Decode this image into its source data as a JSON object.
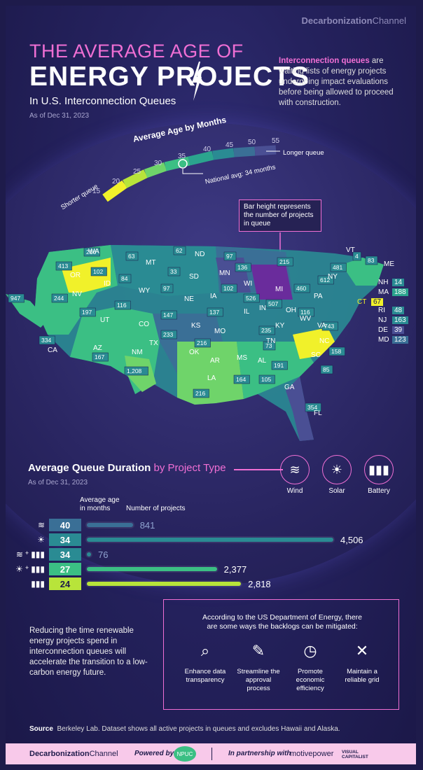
{
  "header": {
    "brand": "Decarbonization",
    "brand_suffix": "Channel",
    "title_line1": "THE AVERAGE AGE OF",
    "title_line2": "ENERGY PROJECTS",
    "title_line3": "In U.S. Interconnection Queues",
    "date": "As of Dec 31, 2023",
    "intro_bold": "Interconnection queues",
    "intro_rest": " are waiting lists of energy projects undergoing impact evaluations before being allowed to proceed with construction."
  },
  "legend": {
    "title": "Average Age by Months",
    "ticks": [
      "15",
      "20",
      "25",
      "30",
      "35",
      "40",
      "45",
      "50",
      "55"
    ],
    "shorter": "Shorter queue",
    "longer": "Longer queue",
    "national_avg": "National avg: 34 months",
    "national_avg_value": 34,
    "colors": [
      "#f1f12a",
      "#b8e43a",
      "#6fd46a",
      "#3bbf84",
      "#2ba48e",
      "#2a8b93",
      "#3a6f96",
      "#4a4f94",
      "#6a2c9c"
    ]
  },
  "callout": "Bar height represents the number of projects in queue",
  "states": [
    {
      "abbr": "WA",
      "count": "216"
    },
    {
      "abbr": "OR",
      "count": "413"
    },
    {
      "abbr": "ID",
      "count": "102"
    },
    {
      "abbr": "MT",
      "count": "63"
    },
    {
      "abbr": "ND",
      "count": "62"
    },
    {
      "abbr": "SD",
      "count": "33"
    },
    {
      "abbr": "MN",
      "count": "97"
    },
    {
      "abbr": "WI",
      "count": "136"
    },
    {
      "abbr": "WY",
      "count": "84"
    },
    {
      "abbr": "NE",
      "count": "97"
    },
    {
      "abbr": "IA",
      "count": "102"
    },
    {
      "abbr": "MI",
      "count": "215"
    },
    {
      "abbr": "NV",
      "count": "244"
    },
    {
      "abbr": "CA",
      "count": "947"
    },
    {
      "abbr": "UT",
      "count": "197"
    },
    {
      "abbr": "CO",
      "count": "116"
    },
    {
      "abbr": "KS",
      "count": "147"
    },
    {
      "abbr": "MO",
      "count": "137"
    },
    {
      "abbr": "IL",
      "count": "526"
    },
    {
      "abbr": "IN",
      "count": "507"
    },
    {
      "abbr": "OH",
      "count": "460"
    },
    {
      "abbr": "PA",
      "count": "612"
    },
    {
      "abbr": "NY",
      "count": "481"
    },
    {
      "abbr": "AZ",
      "count": "334"
    },
    {
      "abbr": "NM",
      "count": "167"
    },
    {
      "abbr": "OK",
      "count": "233"
    },
    {
      "abbr": "TX",
      "count": "1,208"
    },
    {
      "abbr": "AR",
      "count": "216"
    },
    {
      "abbr": "LA",
      "count": "216"
    },
    {
      "abbr": "MS",
      "count": "164"
    },
    {
      "abbr": "AL",
      "count": "105"
    },
    {
      "abbr": "TN",
      "count": "73"
    },
    {
      "abbr": "KY",
      "count": "235"
    },
    {
      "abbr": "WV",
      "count": "116"
    },
    {
      "abbr": "VA",
      "count": "743"
    },
    {
      "abbr": "NC",
      "count": "158"
    },
    {
      "abbr": "SC",
      "count": "85"
    },
    {
      "abbr": "GA",
      "count": "191"
    },
    {
      "abbr": "FL",
      "count": "354"
    },
    {
      "abbr": "VT",
      "count": "4"
    },
    {
      "abbr": "ME",
      "count": "83"
    }
  ],
  "northeast": [
    {
      "abbr": "NH",
      "count": "14",
      "color": "#2a8b93"
    },
    {
      "abbr": "MA",
      "count": "188",
      "color": "#2ba48e"
    },
    {
      "abbr": "CT",
      "count": "67",
      "color": "#f1f12a"
    },
    {
      "abbr": "RI",
      "count": "48",
      "color": "#2a8b93"
    },
    {
      "abbr": "NJ",
      "count": "163",
      "color": "#2a8b93"
    },
    {
      "abbr": "DE",
      "count": "39",
      "color": "#4a4f94"
    },
    {
      "abbr": "MD",
      "count": "123",
      "color": "#3a6f96"
    }
  ],
  "project_types": {
    "title": "Average Queue Duration",
    "title_accent": "by Project Type",
    "date": "As of Dec 31, 2023",
    "labels": [
      "Wind",
      "Solar",
      "Battery"
    ],
    "col_age": "Average age in months",
    "col_projects": "Number of projects"
  },
  "chart_data": {
    "type": "bar",
    "categories": [
      "Wind",
      "Solar",
      "Wind + Battery",
      "Solar + Battery",
      "Battery"
    ],
    "series": [
      {
        "name": "Number of projects",
        "values": [
          841,
          4506,
          76,
          2377,
          2818
        ]
      },
      {
        "name": "Average age in months",
        "values": [
          40,
          34,
          34,
          27,
          24
        ]
      }
    ],
    "labels": [
      "841",
      "4,506",
      "76",
      "2,377",
      "2,818"
    ],
    "age_colors": [
      "#3a6f96",
      "#2a8b93",
      "#2a8b93",
      "#3bbf84",
      "#b8e43a"
    ],
    "bar_colors": [
      "#3a6f96",
      "#2a8b93",
      "#2a8b93",
      "#3bbf84",
      "#b8e43a"
    ],
    "xlim": [
      0,
      4506
    ]
  },
  "mitigation": {
    "lead": "Reducing the time renewable energy projects spend in interconnection queues will accelerate the transition to a low-carbon energy future.",
    "box_title": "According to the US Department of Energy, there are some ways the backlogs can be mitigated:",
    "ways": [
      "Enhance data transparency",
      "Streamline the approval process",
      "Promote economic efficiency",
      "Maintain a reliable grid"
    ]
  },
  "source": {
    "label": "Source",
    "text": "Berkeley Lab. Dataset shows all active projects in queues and excludes Hawaii and Alaska."
  },
  "footer": {
    "brand": "Decarbonization",
    "brand_suffix": "Channel",
    "powered": "Powered by",
    "npuc": "NPUC",
    "partnership": "In partnership with",
    "motive": "motivepower",
    "vc": "VISUAL CAPITALIST"
  }
}
